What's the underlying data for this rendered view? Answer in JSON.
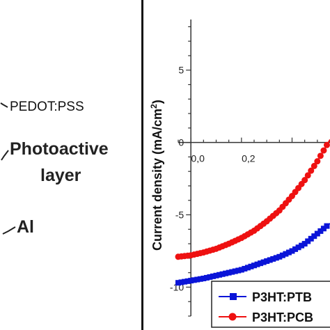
{
  "device": {
    "layers": [
      "PEDOT:PSS",
      "Photoactive",
      "layer",
      "Al"
    ]
  },
  "chart_data": {
    "type": "line",
    "title": "",
    "xlabel": "",
    "ylabel": "Current density (mA/cm",
    "ylabel_sup": "2",
    "ylabel_close": ")",
    "xlim": [
      -0.05,
      0.55
    ],
    "ylim": [
      -12,
      8.5
    ],
    "y_ticks": [
      -10,
      -5,
      0,
      5
    ],
    "y_tick_labels": [
      "-10",
      "-5",
      "0",
      "5"
    ],
    "x_ticks": [
      0.0,
      0.2
    ],
    "x_tick_labels": [
      "0,0",
      "0,2"
    ],
    "grid": false,
    "legend_position": "bottom-right",
    "series": [
      {
        "name": "P3HT:PTB",
        "color": "#0a14d8",
        "marker": "square",
        "x": [
          -0.05,
          0.0,
          0.05,
          0.1,
          0.15,
          0.2,
          0.25,
          0.3,
          0.35,
          0.4,
          0.45,
          0.5,
          0.55
        ],
        "y": [
          -9.7,
          -9.55,
          -9.4,
          -9.2,
          -9.0,
          -8.8,
          -8.5,
          -8.2,
          -7.9,
          -7.5,
          -7.0,
          -6.3,
          -5.6
        ]
      },
      {
        "name": "P3HT:PCB",
        "color": "#ee1111",
        "marker": "circle",
        "x": [
          -0.05,
          0.0,
          0.05,
          0.1,
          0.15,
          0.2,
          0.25,
          0.3,
          0.35,
          0.4,
          0.45,
          0.5,
          0.55
        ],
        "y": [
          -7.9,
          -7.8,
          -7.6,
          -7.35,
          -7.0,
          -6.6,
          -6.1,
          -5.45,
          -4.7,
          -3.7,
          -2.6,
          -1.3,
          0.2
        ]
      }
    ]
  }
}
